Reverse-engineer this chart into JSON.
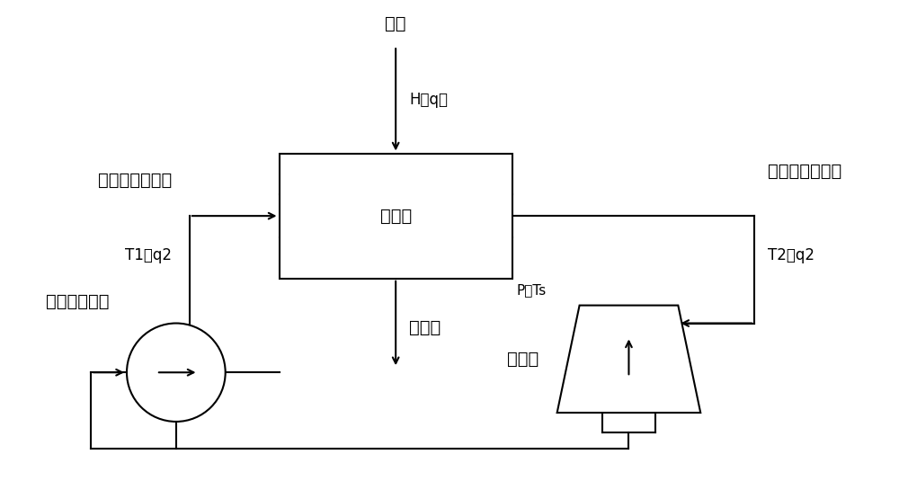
{
  "bg_color": "#ffffff",
  "line_color": "#000000",
  "text_color": "#000000",
  "font_size_large": 14,
  "font_size_med": 12,
  "font_size_small": 11,
  "labels": {
    "exhaust_steam": "乏汽",
    "h_q": "H（q）",
    "condenser": "凝汽器",
    "p_ts": "P，Ts",
    "condensate": "凝结水",
    "circ_return": "循环冷却水回水",
    "t1_q2": "T1，q2",
    "circ_supply": "循环冷却水供水",
    "t2_q2": "T2，q2",
    "circ_pump": "循环冷却水泵",
    "cooling_tower": "冷却塔"
  }
}
